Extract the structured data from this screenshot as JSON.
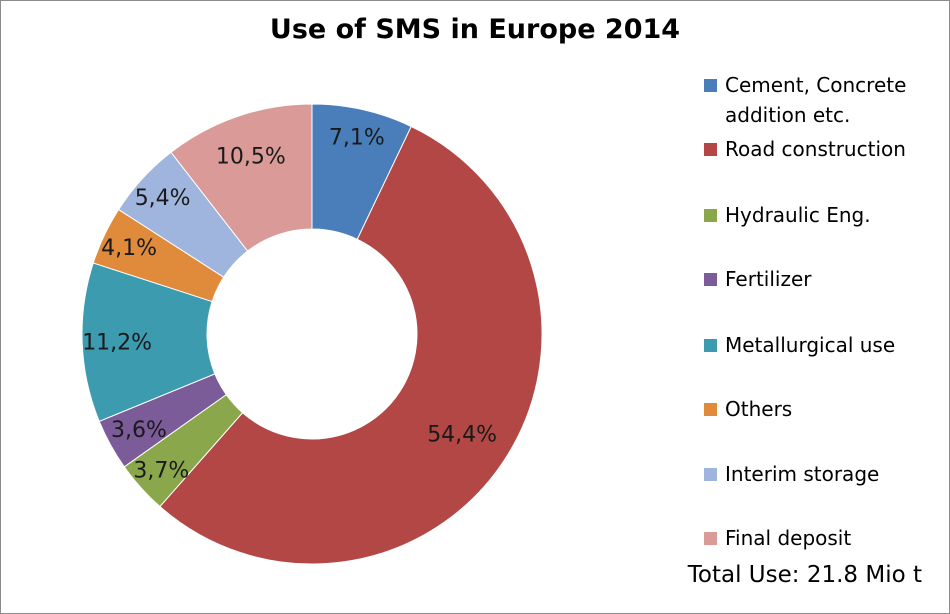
{
  "chart_data": {
    "type": "pie",
    "style": "donut",
    "title": "Use of SMS in Europe 2014",
    "categories": [
      "Cement, Concrete addition etc.",
      "Road construction",
      "Hydraulic Eng.",
      "Fertilizer",
      "Metallurgical use",
      "Others",
      "Interim storage",
      "Final deposit"
    ],
    "values": [
      7.1,
      54.4,
      3.7,
      3.6,
      11.2,
      4.1,
      5.4,
      10.5
    ],
    "data_labels": [
      "7,1%",
      "54,4%",
      "3,7%",
      "3,6%",
      "11,2%",
      "4,1%",
      "5,4%",
      "10,5%"
    ],
    "colors": [
      "#4a7ebb",
      "#b24745",
      "#8aa84b",
      "#7b5c99",
      "#3d9bb0",
      "#e08a3c",
      "#9fb5dd",
      "#d99a98"
    ],
    "legend_position": "right",
    "annotation": "Total Use: 21.8 Mio t"
  }
}
